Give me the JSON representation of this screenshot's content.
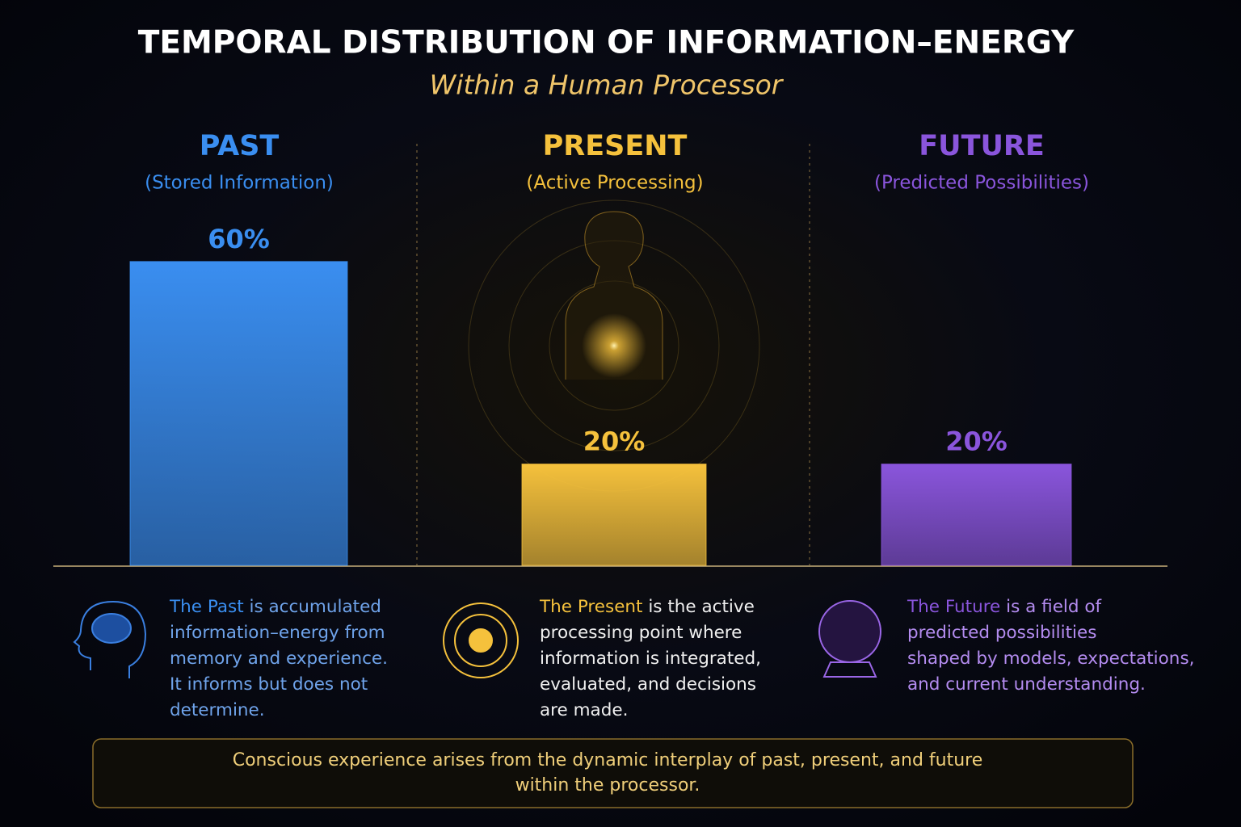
{
  "chart_data": {
    "type": "bar",
    "title": "TEMPORAL DISTRIBUTION OF INFORMATION–ENERGY",
    "subtitle": "Within a Human Processor",
    "categories": [
      "PAST",
      "PRESENT",
      "FUTURE"
    ],
    "category_subtitles": [
      "(Stored Information)",
      "(Active Processing)",
      "(Predicted Possibilities)"
    ],
    "values": [
      60,
      20,
      20
    ],
    "value_labels": [
      "60%",
      "20%",
      "20%"
    ],
    "colors": [
      "#3a8ef0",
      "#f5c13c",
      "#8a55dc"
    ],
    "descriptions": [
      {
        "lead": "The Past",
        "lines": [
          " is accumulated",
          "information–energy from",
          "memory and experience.",
          "It informs but does not",
          "determine."
        ]
      },
      {
        "lead": "The Present",
        "lines": [
          " is the active",
          "processing point where",
          "information is integrated,",
          "evaluated, and decisions",
          "are made."
        ]
      },
      {
        "lead": "The Future",
        "lines": [
          " is a field of",
          "predicted possibilities",
          "shaped by models, expectations,",
          "and current understanding."
        ]
      }
    ],
    "description_colors": [
      "#6fa3ea",
      "#f0f0f0",
      "#b48cf0"
    ],
    "note": [
      "Conscious experience arises from the dynamic interplay of past, present, and future",
      "within the processor."
    ]
  }
}
